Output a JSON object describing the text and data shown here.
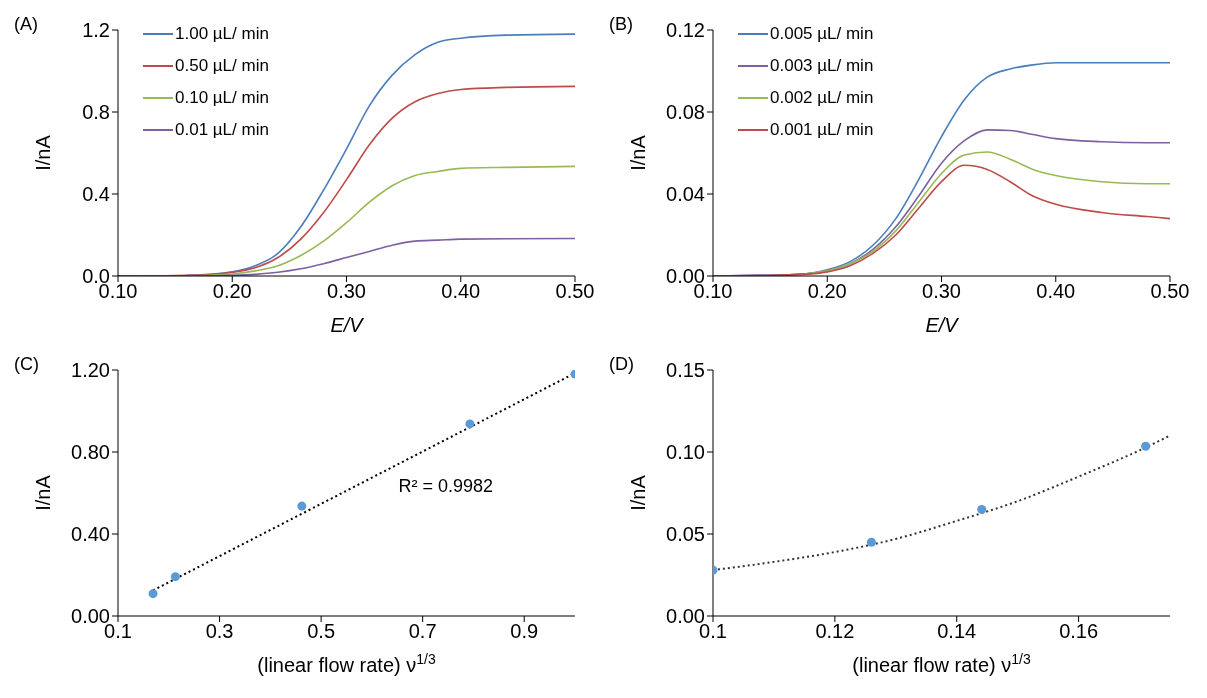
{
  "chart_data": [
    {
      "type": "line",
      "title": "(A)",
      "xlabel": "E/V",
      "ylabel": "I/nA",
      "legend": "top left",
      "grid": false,
      "x": [
        0.1,
        0.14,
        0.16,
        0.18,
        0.2,
        0.22,
        0.24,
        0.26,
        0.28,
        0.3,
        0.32,
        0.34,
        0.36,
        0.38,
        0.4,
        0.44,
        0.5
      ],
      "xlim": [
        0.1,
        0.5
      ],
      "xticks": [
        {
          "value": 0.1,
          "label": "0.10"
        },
        {
          "value": 0.2,
          "label": "0.20"
        },
        {
          "value": 0.3,
          "label": "0.30"
        },
        {
          "value": 0.4,
          "label": "0.40"
        },
        {
          "value": 0.5,
          "label": "0.50"
        }
      ],
      "ylim": [
        0,
        1.2
      ],
      "yticks": [
        {
          "value": 0,
          "label": "0.0"
        },
        0.4,
        0.8,
        1.2
      ],
      "series": [
        {
          "name": "1.00 µL/ min",
          "color": "#4a7ebb",
          "values": [
            null,
            null,
            0.003,
            0.008,
            0.02,
            0.05,
            0.11,
            0.24,
            0.42,
            0.62,
            0.83,
            0.98,
            1.08,
            1.14,
            1.16,
            1.175,
            1.18
          ]
        },
        {
          "name": "0.50 µL/ min",
          "color": "#be4b48",
          "values": [
            0,
            0.001,
            0.003,
            0.007,
            0.018,
            0.04,
            0.09,
            0.18,
            0.31,
            0.47,
            0.64,
            0.77,
            0.85,
            0.89,
            0.91,
            0.92,
            0.925
          ]
        },
        {
          "name": "0.10 µL/ min",
          "color": "#98b954",
          "values": [
            null,
            null,
            0.001,
            0.004,
            0.01,
            0.025,
            0.05,
            0.1,
            0.17,
            0.26,
            0.36,
            0.44,
            0.49,
            0.51,
            0.525,
            0.53,
            0.535
          ]
        },
        {
          "name": "0.01 µL/ min",
          "color": "#7d60a0",
          "values": [
            0,
            0,
            0,
            0.001,
            0.003,
            0.008,
            0.018,
            0.035,
            0.06,
            0.09,
            0.12,
            0.15,
            0.17,
            0.175,
            0.18,
            0.182,
            0.183
          ]
        }
      ]
    },
    {
      "type": "line",
      "title": "(B)",
      "xlabel": "E/V",
      "ylabel": "I/nA",
      "legend": "top left",
      "grid": false,
      "x": [
        0.1,
        0.14,
        0.18,
        0.2,
        0.22,
        0.24,
        0.26,
        0.28,
        0.3,
        0.32,
        0.34,
        0.36,
        0.38,
        0.4,
        0.44,
        0.48,
        0.5
      ],
      "xlim": [
        0.1,
        0.5
      ],
      "xticks": [
        {
          "value": 0.1,
          "label": "0.10"
        },
        {
          "value": 0.2,
          "label": "0.20"
        },
        {
          "value": 0.3,
          "label": "0.30"
        },
        {
          "value": 0.4,
          "label": "0.40"
        },
        {
          "value": 0.5,
          "label": "0.50"
        }
      ],
      "ylim": [
        0,
        0.12
      ],
      "yticks": [
        {
          "value": 0,
          "label": "0.00"
        },
        {
          "value": 0.04,
          "label": "0.04"
        },
        {
          "value": 0.08,
          "label": "0.08"
        },
        {
          "value": 0.12,
          "label": "0.12"
        }
      ],
      "series": [
        {
          "name": "0.005 µL/ min",
          "color": "#4a7ebb",
          "values": [
            0,
            0.0003,
            0.001,
            0.003,
            0.007,
            0.015,
            0.028,
            0.047,
            0.068,
            0.086,
            0.097,
            0.101,
            0.103,
            0.104,
            0.104,
            0.104,
            0.104
          ]
        },
        {
          "name": "0.003 µL/ min",
          "color": "#7d60a0",
          "values": [
            0,
            0.0003,
            0.001,
            0.0025,
            0.006,
            0.013,
            0.024,
            0.039,
            0.055,
            0.066,
            0.0713,
            0.071,
            0.069,
            0.067,
            0.0655,
            0.065,
            0.065
          ]
        },
        {
          "name": "0.002 µL/ min",
          "color": "#98b954",
          "values": [
            null,
            null,
            0.001,
            0.0025,
            0.006,
            0.012,
            0.022,
            0.036,
            0.05,
            0.059,
            0.0605,
            0.057,
            0.052,
            0.049,
            0.046,
            0.045,
            0.045
          ]
        },
        {
          "name": "0.001 µL/ min",
          "color": "#be4b48",
          "values": [
            0,
            0.0002,
            0.0008,
            0.002,
            0.005,
            0.011,
            0.02,
            0.033,
            0.046,
            0.054,
            0.052,
            0.046,
            0.039,
            0.035,
            0.031,
            0.029,
            0.028
          ]
        }
      ]
    },
    {
      "type": "scatter",
      "title": "(C)",
      "xlabel": "(linear flow rate) ν$^{1/3}$",
      "ylabel": "I/nA",
      "grid": false,
      "xlim": [
        0.1,
        1.0
      ],
      "xticks": [
        0.1,
        0.3,
        0.5,
        0.7,
        0.9
      ],
      "ylim": [
        0,
        1.2
      ],
      "yticks": [
        {
          "value": 0,
          "label": "0.00"
        },
        {
          "value": 0.4,
          "label": "0.40"
        },
        {
          "value": 0.8,
          "label": "0.80"
        },
        {
          "value": 1.2,
          "label": "1.20"
        }
      ],
      "annotations": [
        "R² = 0.9982"
      ],
      "series": [
        {
          "marker": "circle",
          "color": "#5b9bd5",
          "x": [
            0.169,
            0.213,
            0.462,
            0.793,
            1.0
          ],
          "values": [
            0.109,
            0.192,
            0.536,
            0.937,
            1.18
          ]
        },
        {
          "type": "line",
          "line_style": "dotted",
          "color": "#000000",
          "x": [
            0.169,
            1.0
          ],
          "values": [
            0.125,
            1.185
          ]
        }
      ]
    },
    {
      "type": "scatter",
      "title": "(D)",
      "xlabel": "(linear flow rate) ν$^{1/3}$",
      "ylabel": "I/nA",
      "grid": false,
      "xlim": [
        0.1,
        0.175
      ],
      "xticks": [
        0.1,
        0.12,
        0.14,
        0.16
      ],
      "ylim": [
        0,
        0.15
      ],
      "yticks": [
        {
          "value": 0,
          "label": "0.00"
        },
        0.05,
        {
          "value": 0.1,
          "label": "0.10"
        },
        0.15
      ],
      "series": [
        {
          "marker": "circle",
          "color": "#5b9bd5",
          "x": [
            0.1,
            0.126,
            0.1441,
            0.171
          ],
          "values": [
            0.028,
            0.045,
            0.065,
            0.1035
          ]
        },
        {
          "type": "line",
          "line_style": "dotted",
          "color": "#333333",
          "x": [
            0.1,
            0.11,
            0.12,
            0.13,
            0.14,
            0.15,
            0.16,
            0.17,
            0.175
          ],
          "values": [
            0.028,
            0.033,
            0.039,
            0.047,
            0.058,
            0.07,
            0.085,
            0.101,
            0.11
          ]
        }
      ]
    }
  ]
}
